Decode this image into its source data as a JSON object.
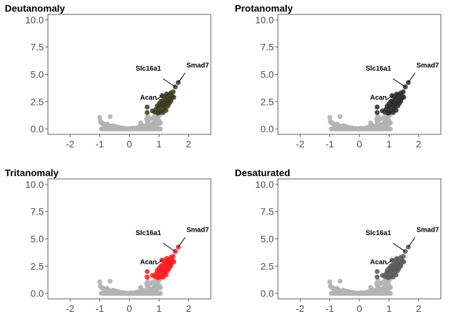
{
  "chart_data": [
    {
      "type": "scatter",
      "title": "Deutanomaly",
      "xlabel": "",
      "ylabel": "",
      "xlim": [
        -2.75,
        2.75
      ],
      "ylim": [
        -0.5,
        10.5
      ],
      "x_ticks": [
        -2,
        -1,
        0,
        1,
        2
      ],
      "x_tick_labels": [
        "-2",
        "-1",
        "0",
        "1",
        "2"
      ],
      "y_ticks": [
        0,
        2.5,
        5,
        7.5,
        10
      ],
      "y_tick_labels": [
        "0.0",
        "2.5",
        "5.0",
        "7.5",
        "10.0"
      ],
      "grid": false,
      "highlight_color": "#3b3a1e",
      "background_color": "#b3b3b3",
      "labels": [
        {
          "text": "Slc16a1",
          "x": 1.55,
          "y": 3.85
        },
        {
          "text": "Smad7",
          "x": 1.65,
          "y": 4.25
        },
        {
          "text": "Acan",
          "x": 1.1,
          "y": 3.05
        }
      ]
    },
    {
      "type": "scatter",
      "title": "Protanomaly",
      "xlabel": "",
      "ylabel": "",
      "xlim": [
        -2.75,
        2.75
      ],
      "ylim": [
        -0.5,
        10.5
      ],
      "x_ticks": [
        -2,
        -1,
        0,
        1,
        2
      ],
      "x_tick_labels": [
        "-2",
        "-1",
        "0",
        "1",
        "2"
      ],
      "y_ticks": [
        0,
        2.5,
        5,
        7.5,
        10
      ],
      "y_tick_labels": [
        "0.0",
        "2.5",
        "5.0",
        "7.5",
        "10.0"
      ],
      "grid": false,
      "highlight_color": "#2a2a2a",
      "background_color": "#b3b3b3",
      "labels": [
        {
          "text": "Slc16a1",
          "x": 1.55,
          "y": 3.85
        },
        {
          "text": "Smad7",
          "x": 1.65,
          "y": 4.25
        },
        {
          "text": "Acan",
          "x": 1.1,
          "y": 3.05
        }
      ]
    },
    {
      "type": "scatter",
      "title": "Tritanomaly",
      "xlabel": "",
      "ylabel": "",
      "xlim": [
        -2.75,
        2.75
      ],
      "ylim": [
        -0.5,
        10.5
      ],
      "x_ticks": [
        -2,
        -1,
        0,
        1,
        2
      ],
      "x_tick_labels": [
        "-2",
        "-1",
        "0",
        "1",
        "2"
      ],
      "y_ticks": [
        0,
        2.5,
        5,
        7.5,
        10
      ],
      "y_tick_labels": [
        "0.0",
        "2.5",
        "5.0",
        "7.5",
        "10.0"
      ],
      "grid": false,
      "highlight_color": "#ff1a1a",
      "background_color": "#b3b3b3",
      "labels": [
        {
          "text": "Slc16a1",
          "x": 1.55,
          "y": 3.85
        },
        {
          "text": "Smad7",
          "x": 1.65,
          "y": 4.25
        },
        {
          "text": "Acan",
          "x": 1.1,
          "y": 3.05
        }
      ]
    },
    {
      "type": "scatter",
      "title": "Desaturated",
      "xlabel": "",
      "ylabel": "",
      "xlim": [
        -2.75,
        2.75
      ],
      "ylim": [
        -0.5,
        10.5
      ],
      "x_ticks": [
        -2,
        -1,
        0,
        1,
        2
      ],
      "x_tick_labels": [
        "-2",
        "-1",
        "0",
        "1",
        "2"
      ],
      "y_ticks": [
        0,
        2.5,
        5,
        7.5,
        10
      ],
      "y_tick_labels": [
        "0.0",
        "2.5",
        "5.0",
        "7.5",
        "10.0"
      ],
      "grid": false,
      "highlight_color": "#595959",
      "background_color": "#b3b3b3",
      "labels": [
        {
          "text": "Slc16a1",
          "x": 1.55,
          "y": 3.85
        },
        {
          "text": "Smad7",
          "x": 1.65,
          "y": 4.25
        },
        {
          "text": "Acan",
          "x": 1.1,
          "y": 3.05
        }
      ]
    }
  ],
  "points": {
    "background": [
      [
        -1.0,
        1.05
      ],
      [
        -0.65,
        1.12
      ],
      [
        -0.98,
        0.68
      ],
      [
        -0.9,
        0.5
      ],
      [
        -0.85,
        0.38
      ],
      [
        -0.78,
        0.28
      ],
      [
        -0.7,
        0.2
      ],
      [
        -0.6,
        0.14
      ],
      [
        -0.5,
        0.1
      ],
      [
        -0.4,
        0.06
      ],
      [
        -0.3,
        0.04
      ],
      [
        -0.2,
        0.02
      ],
      [
        -0.1,
        0.01
      ],
      [
        0.0,
        0.0
      ],
      [
        0.1,
        0.01
      ],
      [
        0.2,
        0.03
      ],
      [
        0.3,
        0.05
      ],
      [
        0.4,
        0.08
      ],
      [
        0.5,
        0.12
      ],
      [
        0.6,
        0.18
      ],
      [
        0.68,
        0.26
      ],
      [
        0.74,
        0.35
      ],
      [
        0.8,
        0.48
      ],
      [
        0.85,
        0.62
      ],
      [
        0.9,
        0.8
      ],
      [
        0.93,
        0.95
      ],
      [
        0.97,
        1.1
      ],
      [
        1.02,
        1.28
      ],
      [
        0.38,
        0.55
      ],
      [
        0.42,
        0.35
      ],
      [
        0.6,
        0.72
      ],
      [
        0.65,
        0.5
      ],
      [
        0.55,
        0.3
      ],
      [
        -0.45,
        0.22
      ],
      [
        -0.55,
        0.3
      ],
      [
        -0.35,
        0.15
      ],
      [
        -0.75,
        0.45
      ],
      [
        -0.15,
        0.05
      ],
      [
        0.15,
        0.06
      ],
      [
        0.25,
        0.1
      ],
      [
        0.7,
        0.9
      ],
      [
        0.78,
        1.0
      ],
      [
        0.88,
        1.2
      ],
      [
        0.58,
        0.9
      ],
      [
        0.62,
        1.15
      ],
      [
        0.83,
        0.3
      ],
      [
        0.72,
        0.15
      ],
      [
        -0.62,
        0.08
      ],
      [
        -0.25,
        0.1
      ],
      [
        0.05,
        0.07
      ],
      [
        0.33,
        0.2
      ],
      [
        0.47,
        0.22
      ],
      [
        0.95,
        0.55
      ],
      [
        1.0,
        0.75
      ],
      [
        0.9,
        0.35
      ]
    ],
    "highlight": [
      [
        0.6,
        1.5
      ],
      [
        0.6,
        2.0
      ],
      [
        0.78,
        1.65
      ],
      [
        0.86,
        1.55
      ],
      [
        0.9,
        1.8
      ],
      [
        0.94,
        2.1
      ],
      [
        0.98,
        1.9
      ],
      [
        1.0,
        2.3
      ],
      [
        1.04,
        2.05
      ],
      [
        1.06,
        2.5
      ],
      [
        1.1,
        2.2
      ],
      [
        1.12,
        2.6
      ],
      [
        1.15,
        1.8
      ],
      [
        1.18,
        2.4
      ],
      [
        1.2,
        2.0
      ],
      [
        1.22,
        2.7
      ],
      [
        1.25,
        2.3
      ],
      [
        1.28,
        2.9
      ],
      [
        1.3,
        2.5
      ],
      [
        1.33,
        3.1
      ],
      [
        1.36,
        2.7
      ],
      [
        1.4,
        3.3
      ],
      [
        1.42,
        2.8
      ],
      [
        1.45,
        3.0
      ],
      [
        1.3,
        2.1
      ],
      [
        1.24,
        1.7
      ],
      [
        1.14,
        1.5
      ],
      [
        1.08,
        1.65
      ],
      [
        1.02,
        1.5
      ],
      [
        1.35,
        2.35
      ],
      [
        1.55,
        3.85
      ],
      [
        1.65,
        4.25
      ],
      [
        1.1,
        3.05
      ],
      [
        1.48,
        3.4
      ],
      [
        1.18,
        3.0
      ],
      [
        1.26,
        3.2
      ],
      [
        0.96,
        1.45
      ],
      [
        1.4,
        2.55
      ],
      [
        1.5,
        2.9
      ],
      [
        1.16,
        2.15
      ]
    ]
  }
}
